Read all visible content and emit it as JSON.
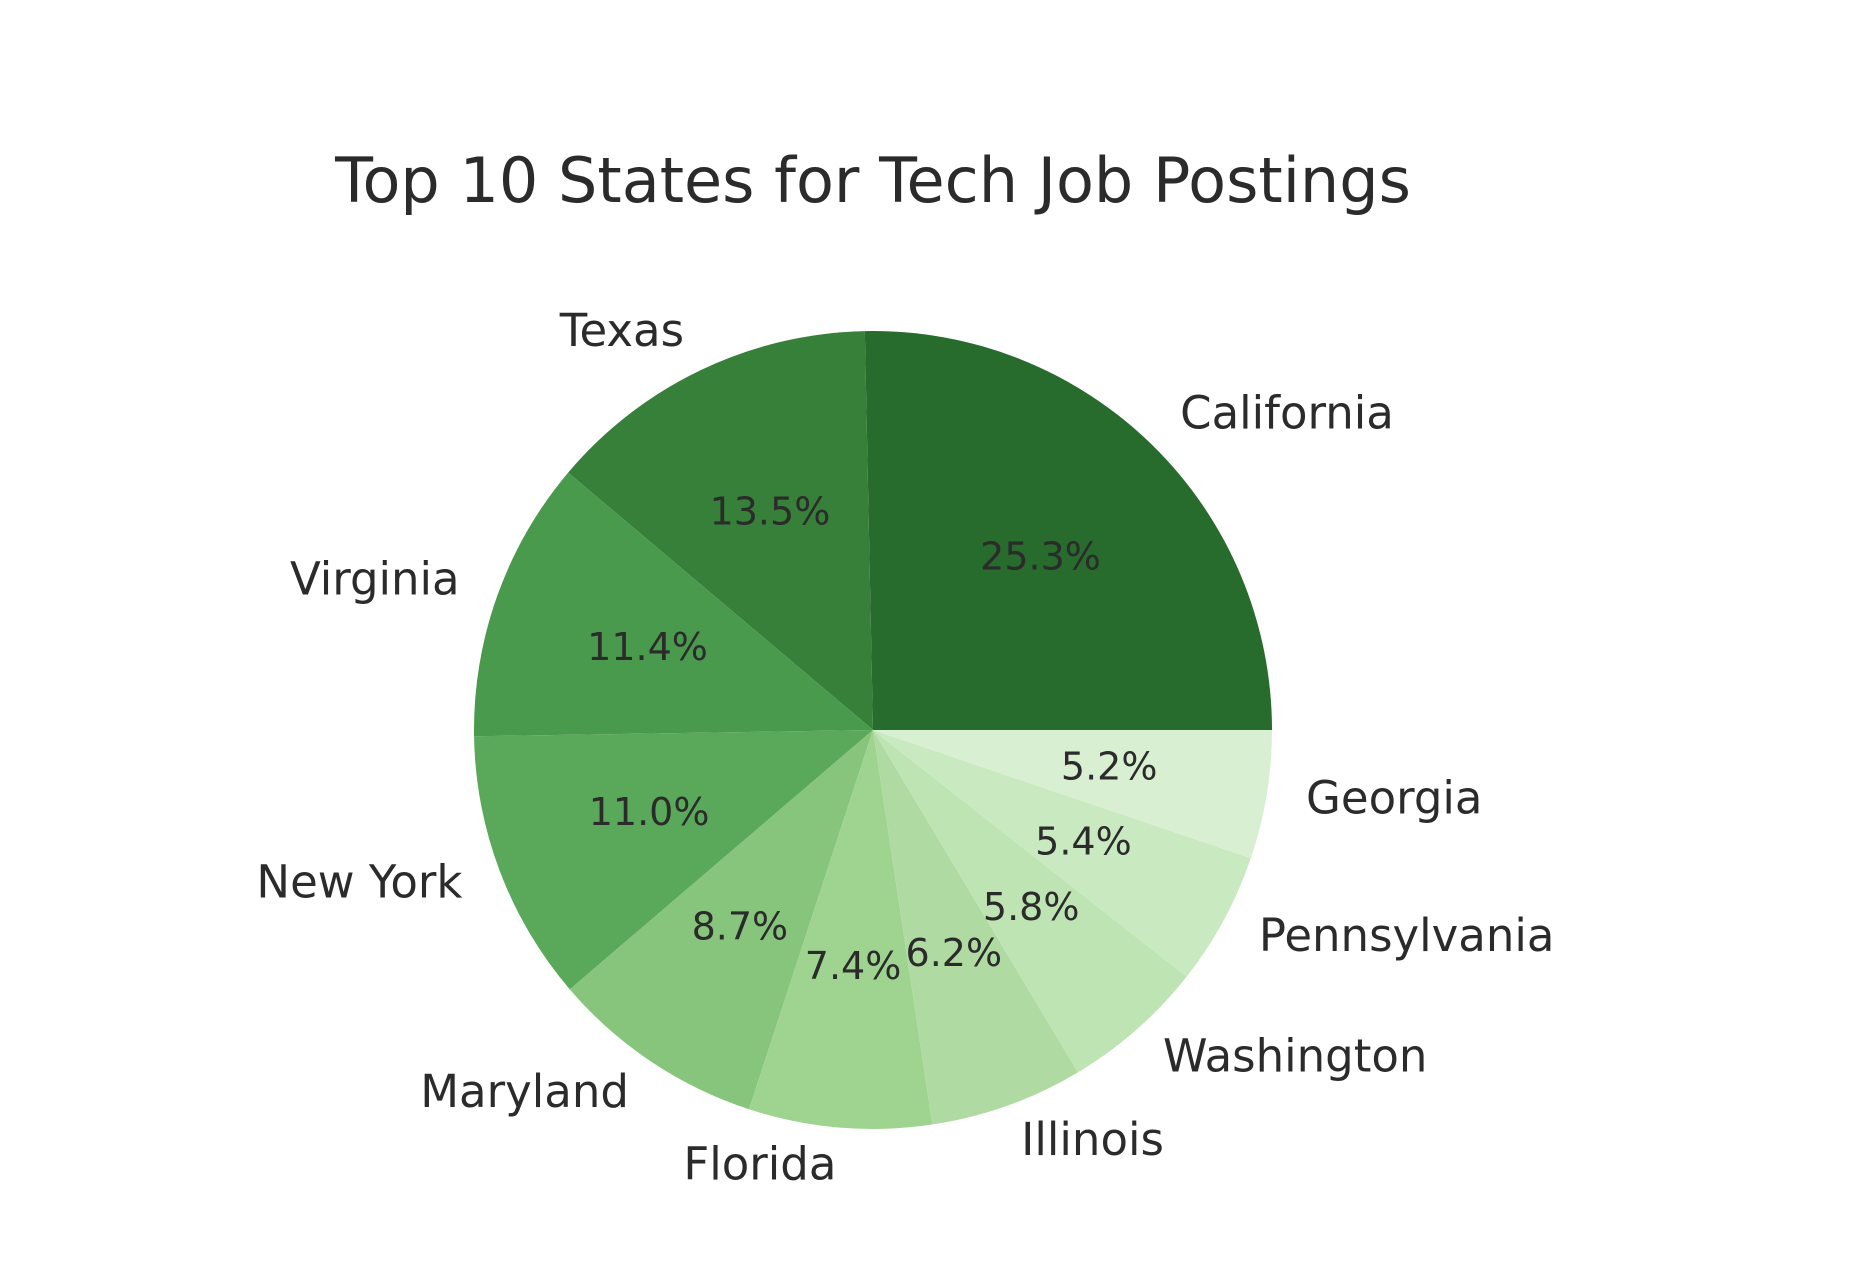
{
  "chart_data": {
    "type": "pie",
    "title": "Top 10 States for Tech Job Postings",
    "categories": [
      "California",
      "Texas",
      "Virginia",
      "New York",
      "Maryland",
      "Florida",
      "Illinois",
      "Washington",
      "Pennsylvania",
      "Georgia"
    ],
    "values": [
      25.3,
      13.5,
      11.4,
      11.0,
      8.7,
      7.4,
      6.2,
      5.8,
      5.4,
      5.2
    ],
    "value_labels": [
      "25.3%",
      "13.5%",
      "11.4%",
      "11.0%",
      "8.7%",
      "7.4%",
      "6.2%",
      "5.8%",
      "5.4%",
      "5.2%"
    ],
    "colors": [
      "#276b2d",
      "#37803a",
      "#4a9a4d",
      "#5aa95a",
      "#86c57b",
      "#9fd490",
      "#afdba2",
      "#bde4b2",
      "#c9eac0",
      "#d8efd1"
    ]
  }
}
